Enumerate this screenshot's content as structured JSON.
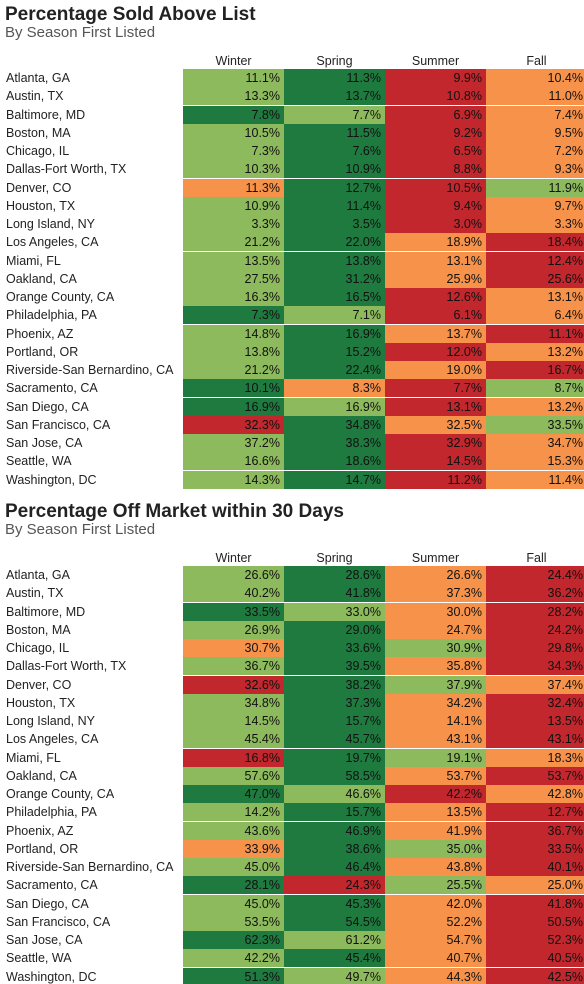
{
  "colors": {
    "dark_green": "#1f7a3f",
    "light_green": "#8dba5c",
    "orange": "#f6924a",
    "red": "#c1272d"
  },
  "chart_data": [
    {
      "type": "heatmap",
      "title": "Percentage Sold Above List",
      "subtitle": "By Season First Listed",
      "columns": [
        "Winter",
        "Spring",
        "Summer",
        "Fall"
      ],
      "rows": [
        "Atlanta, GA",
        "Austin, TX",
        "Baltimore, MD",
        "Boston, MA",
        "Chicago, IL",
        "Dallas-Fort Worth, TX",
        "Denver, CO",
        "Houston, TX",
        "Long Island, NY",
        "Los Angeles, CA",
        "Miami, FL",
        "Oakland, CA",
        "Orange County, CA",
        "Philadelphia, PA",
        "Phoenix, AZ",
        "Portland, OR",
        "Riverside-San Bernardino, CA",
        "Sacramento, CA",
        "San Diego, CA",
        "San Francisco, CA",
        "San Jose, CA",
        "Seattle, WA",
        "Washington, DC"
      ],
      "values": [
        [
          "11.1%",
          "11.3%",
          "9.9%",
          "10.4%"
        ],
        [
          "13.3%",
          "13.7%",
          "10.8%",
          "11.0%"
        ],
        [
          "7.8%",
          "7.7%",
          "6.9%",
          "7.4%"
        ],
        [
          "10.5%",
          "11.5%",
          "9.2%",
          "9.5%"
        ],
        [
          "7.3%",
          "7.6%",
          "6.5%",
          "7.2%"
        ],
        [
          "10.3%",
          "10.9%",
          "8.8%",
          "9.3%"
        ],
        [
          "11.3%",
          "12.7%",
          "10.5%",
          "11.9%"
        ],
        [
          "10.9%",
          "11.4%",
          "9.4%",
          "9.7%"
        ],
        [
          "3.3%",
          "3.5%",
          "3.0%",
          "3.3%"
        ],
        [
          "21.2%",
          "22.0%",
          "18.9%",
          "18.4%"
        ],
        [
          "13.5%",
          "13.8%",
          "13.1%",
          "12.4%"
        ],
        [
          "27.5%",
          "31.2%",
          "25.9%",
          "25.6%"
        ],
        [
          "16.3%",
          "16.5%",
          "12.6%",
          "13.1%"
        ],
        [
          "7.3%",
          "7.1%",
          "6.1%",
          "6.4%"
        ],
        [
          "14.8%",
          "16.9%",
          "13.7%",
          "11.1%"
        ],
        [
          "13.8%",
          "15.2%",
          "12.0%",
          "13.2%"
        ],
        [
          "21.2%",
          "22.4%",
          "19.0%",
          "16.7%"
        ],
        [
          "10.1%",
          "8.3%",
          "7.7%",
          "8.7%"
        ],
        [
          "16.9%",
          "16.9%",
          "13.1%",
          "13.2%"
        ],
        [
          "32.3%",
          "34.8%",
          "32.5%",
          "33.5%"
        ],
        [
          "37.2%",
          "38.3%",
          "32.9%",
          "34.7%"
        ],
        [
          "16.6%",
          "18.6%",
          "14.5%",
          "15.3%"
        ],
        [
          "14.3%",
          "14.7%",
          "11.2%",
          "11.4%"
        ]
      ],
      "cell_colors": [
        [
          "lg",
          "dg",
          "r",
          "o"
        ],
        [
          "lg",
          "dg",
          "r",
          "o"
        ],
        [
          "dg",
          "lg",
          "r",
          "o"
        ],
        [
          "lg",
          "dg",
          "r",
          "o"
        ],
        [
          "lg",
          "dg",
          "r",
          "o"
        ],
        [
          "lg",
          "dg",
          "r",
          "o"
        ],
        [
          "o",
          "dg",
          "r",
          "lg"
        ],
        [
          "lg",
          "dg",
          "r",
          "o"
        ],
        [
          "lg",
          "dg",
          "r",
          "o"
        ],
        [
          "lg",
          "dg",
          "o",
          "r"
        ],
        [
          "lg",
          "dg",
          "o",
          "r"
        ],
        [
          "lg",
          "dg",
          "o",
          "r"
        ],
        [
          "lg",
          "dg",
          "r",
          "o"
        ],
        [
          "dg",
          "lg",
          "r",
          "o"
        ],
        [
          "lg",
          "dg",
          "o",
          "r"
        ],
        [
          "lg",
          "dg",
          "r",
          "o"
        ],
        [
          "lg",
          "dg",
          "o",
          "r"
        ],
        [
          "dg",
          "o",
          "r",
          "lg"
        ],
        [
          "dg",
          "lg",
          "r",
          "o"
        ],
        [
          "r",
          "dg",
          "o",
          "lg"
        ],
        [
          "lg",
          "dg",
          "r",
          "o"
        ],
        [
          "lg",
          "dg",
          "r",
          "o"
        ],
        [
          "lg",
          "dg",
          "r",
          "o"
        ]
      ]
    },
    {
      "type": "heatmap",
      "title": "Percentage Off Market within 30 Days",
      "subtitle": "By Season First Listed",
      "columns": [
        "Winter",
        "Spring",
        "Summer",
        "Fall"
      ],
      "rows": [
        "Atlanta, GA",
        "Austin, TX",
        "Baltimore, MD",
        "Boston, MA",
        "Chicago, IL",
        "Dallas-Fort Worth, TX",
        "Denver, CO",
        "Houston, TX",
        "Long Island, NY",
        "Los Angeles, CA",
        "Miami, FL",
        "Oakland, CA",
        "Orange County, CA",
        "Philadelphia, PA",
        "Phoenix, AZ",
        "Portland, OR",
        "Riverside-San Bernardino, CA",
        "Sacramento, CA",
        "San Diego, CA",
        "San Francisco, CA",
        "San Jose, CA",
        "Seattle, WA",
        "Washington, DC"
      ],
      "values": [
        [
          "26.6%",
          "28.6%",
          "26.6%",
          "24.4%"
        ],
        [
          "40.2%",
          "41.8%",
          "37.3%",
          "36.2%"
        ],
        [
          "33.5%",
          "33.0%",
          "30.0%",
          "28.2%"
        ],
        [
          "26.9%",
          "29.0%",
          "24.7%",
          "24.2%"
        ],
        [
          "30.7%",
          "33.6%",
          "30.9%",
          "29.8%"
        ],
        [
          "36.7%",
          "39.5%",
          "35.8%",
          "34.3%"
        ],
        [
          "32.6%",
          "38.2%",
          "37.9%",
          "37.4%"
        ],
        [
          "34.8%",
          "37.3%",
          "34.2%",
          "32.4%"
        ],
        [
          "14.5%",
          "15.7%",
          "14.1%",
          "13.5%"
        ],
        [
          "45.4%",
          "45.7%",
          "43.1%",
          "43.1%"
        ],
        [
          "16.8%",
          "19.7%",
          "19.1%",
          "18.3%"
        ],
        [
          "57.6%",
          "58.5%",
          "53.7%",
          "53.7%"
        ],
        [
          "47.0%",
          "46.6%",
          "42.2%",
          "42.8%"
        ],
        [
          "14.2%",
          "15.7%",
          "13.5%",
          "12.7%"
        ],
        [
          "43.6%",
          "46.9%",
          "41.9%",
          "36.7%"
        ],
        [
          "33.9%",
          "38.6%",
          "35.0%",
          "33.5%"
        ],
        [
          "45.0%",
          "46.4%",
          "43.8%",
          "40.1%"
        ],
        [
          "28.1%",
          "24.3%",
          "25.5%",
          "25.0%"
        ],
        [
          "45.0%",
          "45.3%",
          "42.0%",
          "41.8%"
        ],
        [
          "53.5%",
          "54.5%",
          "52.2%",
          "50.5%"
        ],
        [
          "62.3%",
          "61.2%",
          "54.7%",
          "52.3%"
        ],
        [
          "42.2%",
          "45.4%",
          "40.7%",
          "40.5%"
        ],
        [
          "51.3%",
          "49.7%",
          "44.3%",
          "42.5%"
        ]
      ],
      "cell_colors": [
        [
          "lg",
          "dg",
          "o",
          "r"
        ],
        [
          "lg",
          "dg",
          "o",
          "r"
        ],
        [
          "dg",
          "lg",
          "o",
          "r"
        ],
        [
          "lg",
          "dg",
          "o",
          "r"
        ],
        [
          "o",
          "dg",
          "lg",
          "r"
        ],
        [
          "lg",
          "dg",
          "o",
          "r"
        ],
        [
          "r",
          "dg",
          "lg",
          "o"
        ],
        [
          "lg",
          "dg",
          "o",
          "r"
        ],
        [
          "lg",
          "dg",
          "o",
          "r"
        ],
        [
          "lg",
          "dg",
          "o",
          "r"
        ],
        [
          "r",
          "dg",
          "lg",
          "o"
        ],
        [
          "lg",
          "dg",
          "o",
          "r"
        ],
        [
          "dg",
          "lg",
          "r",
          "o"
        ],
        [
          "lg",
          "dg",
          "o",
          "r"
        ],
        [
          "lg",
          "dg",
          "o",
          "r"
        ],
        [
          "o",
          "dg",
          "lg",
          "r"
        ],
        [
          "lg",
          "dg",
          "o",
          "r"
        ],
        [
          "dg",
          "r",
          "lg",
          "o"
        ],
        [
          "lg",
          "dg",
          "o",
          "r"
        ],
        [
          "lg",
          "dg",
          "o",
          "r"
        ],
        [
          "dg",
          "lg",
          "o",
          "r"
        ],
        [
          "lg",
          "dg",
          "o",
          "r"
        ],
        [
          "dg",
          "lg",
          "o",
          "r"
        ]
      ]
    }
  ]
}
